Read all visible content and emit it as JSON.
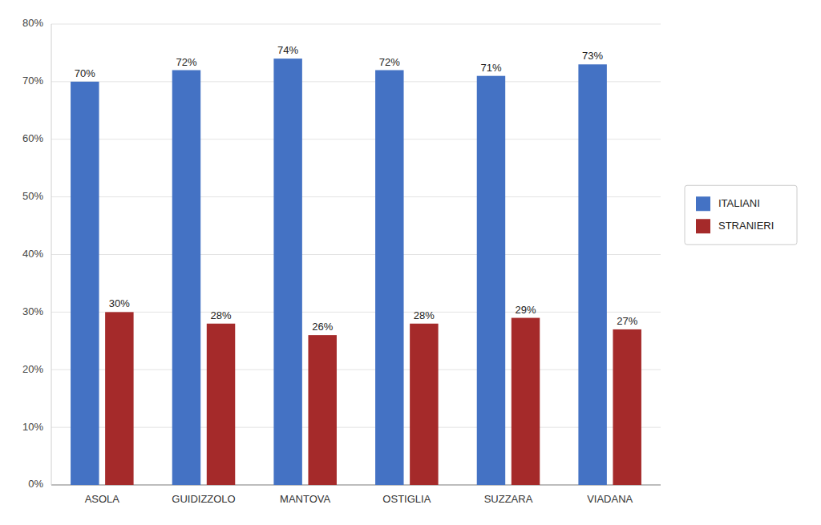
{
  "chart_data": {
    "type": "bar",
    "categories": [
      "ASOLA",
      "GUIDIZZOLO",
      "MANTOVA",
      "OSTIGLIA",
      "SUZZARA",
      "VIADANA"
    ],
    "series": [
      {
        "name": "ITALIANI",
        "color": "#4472C4",
        "values": [
          0.7,
          0.72,
          0.74,
          0.72,
          0.71,
          0.73
        ],
        "value_labels": [
          "70%",
          "72%",
          "74%",
          "72%",
          "71%",
          "73%"
        ]
      },
      {
        "name": "STRANIERI",
        "color": "#A52A2A",
        "values": [
          0.3,
          0.28,
          0.26,
          0.28,
          0.29,
          0.27
        ],
        "value_labels": [
          "30%",
          "28%",
          "26%",
          "28%",
          "29%",
          "27%"
        ]
      }
    ],
    "ylim": [
      0.0,
      0.8
    ],
    "yticks": [
      {
        "value": 0.0,
        "label": "0%"
      },
      {
        "value": 0.1,
        "label": "10%"
      },
      {
        "value": 0.2,
        "label": "20%"
      },
      {
        "value": 0.3,
        "label": "30%"
      },
      {
        "value": 0.4,
        "label": "40%"
      },
      {
        "value": 0.5,
        "label": "50%"
      },
      {
        "value": 0.6,
        "label": "60%"
      },
      {
        "value": 0.7,
        "label": "70%"
      },
      {
        "value": 0.8,
        "label": "80%"
      }
    ],
    "grid": true,
    "legend": "right",
    "data_labels": true
  }
}
